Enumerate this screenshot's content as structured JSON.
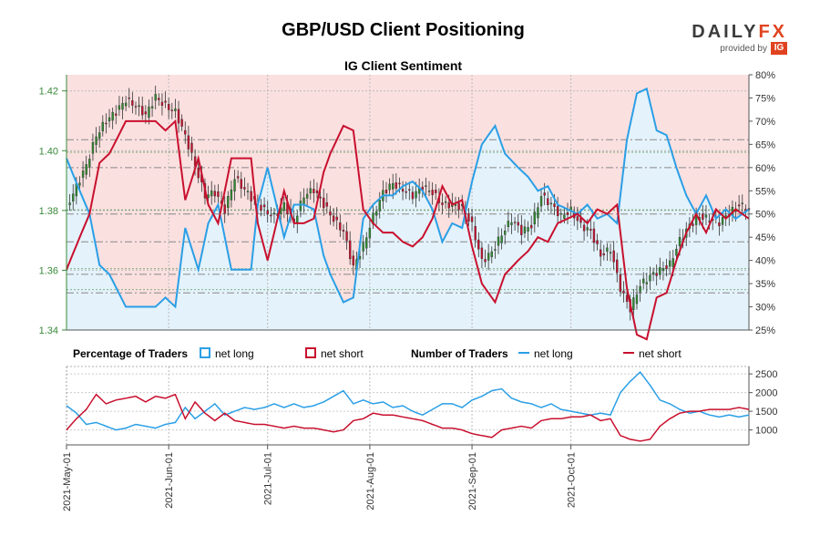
{
  "header": {
    "title": "GBP/USD Client Positioning",
    "subtitle": "IG Client Sentiment"
  },
  "logo": {
    "word_main": "DAILY",
    "word_accent": "FX",
    "provided_by": "provided by",
    "ig": "IG"
  },
  "legend": {
    "pct_title": "Percentage of Traders",
    "num_title": "Number of Traders",
    "net_long": "net long",
    "net_short": "net short"
  },
  "colors": {
    "long": "#2a9fe6",
    "short": "#c8102e",
    "up_candle": "#2e8b2e",
    "down_candle": "#c8102e",
    "price_axis": "#3a8a3a",
    "short_fill": "#fbe0e0",
    "long_fill": "#e4f2fb"
  },
  "chart_data": [
    {
      "type": "candlestick+line",
      "name": "price-and-percentage",
      "title": "IG Client Sentiment",
      "y_left_ticks": [
        "1.42",
        "1.40",
        "1.38",
        "1.36",
        "1.34"
      ],
      "y_left_values": [
        1.42,
        1.4,
        1.38,
        1.36,
        1.34
      ],
      "ylim_left": [
        1.34,
        1.4254
      ],
      "y_right_ticks": [
        "80%",
        "75%",
        "70%",
        "65%",
        "60%",
        "55%",
        "50%",
        "45%",
        "40%",
        "35%",
        "30%",
        "25%"
      ],
      "y_right_values": [
        80,
        75,
        70,
        65,
        60,
        55,
        50,
        45,
        40,
        35,
        30,
        25
      ],
      "ylim_right": [
        25,
        80
      ],
      "reference_lines_price": [
        1.3995,
        1.3802,
        1.3605,
        1.3535
      ],
      "reference_lines_pct": [
        66,
        60,
        50,
        44,
        37,
        33
      ],
      "price_keyframes": [
        [
          0,
          1.381
        ],
        [
          3,
          1.388
        ],
        [
          6,
          1.395
        ],
        [
          9,
          1.405
        ],
        [
          12,
          1.41
        ],
        [
          15,
          1.413
        ],
        [
          18,
          1.417
        ],
        [
          21,
          1.415
        ],
        [
          24,
          1.412
        ],
        [
          27,
          1.418
        ],
        [
          30,
          1.415
        ],
        [
          33,
          1.413
        ],
        [
          36,
          1.405
        ],
        [
          39,
          1.395
        ],
        [
          42,
          1.385
        ],
        [
          45,
          1.386
        ],
        [
          48,
          1.38
        ],
        [
          51,
          1.391
        ],
        [
          54,
          1.387
        ],
        [
          57,
          1.383
        ],
        [
          60,
          1.38
        ],
        [
          63,
          1.378
        ],
        [
          66,
          1.382
        ],
        [
          69,
          1.376
        ],
        [
          72,
          1.385
        ],
        [
          75,
          1.387
        ],
        [
          78,
          1.382
        ],
        [
          81,
          1.377
        ],
        [
          84,
          1.373
        ],
        [
          87,
          1.361
        ],
        [
          90,
          1.368
        ],
        [
          93,
          1.378
        ],
        [
          96,
          1.386
        ],
        [
          99,
          1.389
        ],
        [
          102,
          1.387
        ],
        [
          105,
          1.385
        ],
        [
          108,
          1.388
        ],
        [
          111,
          1.386
        ],
        [
          114,
          1.382
        ],
        [
          117,
          1.382
        ],
        [
          120,
          1.381
        ],
        [
          123,
          1.375
        ],
        [
          126,
          1.363
        ],
        [
          129,
          1.366
        ],
        [
          132,
          1.372
        ],
        [
          135,
          1.377
        ],
        [
          138,
          1.373
        ],
        [
          141,
          1.375
        ],
        [
          144,
          1.385
        ],
        [
          147,
          1.382
        ],
        [
          150,
          1.378
        ],
        [
          153,
          1.38
        ],
        [
          156,
          1.375
        ],
        [
          159,
          1.373
        ],
        [
          162,
          1.365
        ],
        [
          165,
          1.367
        ],
        [
          168,
          1.354
        ],
        [
          171,
          1.347
        ],
        [
          174,
          1.355
        ],
        [
          177,
          1.358
        ],
        [
          180,
          1.36
        ],
        [
          183,
          1.362
        ],
        [
          186,
          1.37
        ],
        [
          189,
          1.375
        ],
        [
          192,
          1.378
        ],
        [
          195,
          1.377
        ],
        [
          198,
          1.376
        ],
        [
          201,
          1.379
        ],
        [
          204,
          1.382
        ],
        [
          207,
          1.38
        ]
      ],
      "long_pct_keyframes": [
        [
          0,
          62
        ],
        [
          4,
          55
        ],
        [
          7,
          50
        ],
        [
          10,
          39
        ],
        [
          13,
          37
        ],
        [
          18,
          30
        ],
        [
          21,
          30
        ],
        [
          24,
          30
        ],
        [
          27,
          30
        ],
        [
          30,
          32
        ],
        [
          33,
          30
        ],
        [
          36,
          47
        ],
        [
          40,
          38
        ],
        [
          43,
          48
        ],
        [
          46,
          52
        ],
        [
          50,
          38
        ],
        [
          53,
          38
        ],
        [
          56,
          38
        ],
        [
          58,
          52
        ],
        [
          61,
          60
        ],
        [
          66,
          45
        ],
        [
          69,
          52
        ],
        [
          72,
          52
        ],
        [
          75,
          51
        ],
        [
          78,
          41
        ],
        [
          80,
          37
        ],
        [
          84,
          31
        ],
        [
          87,
          32
        ],
        [
          90,
          49
        ],
        [
          93,
          52
        ],
        [
          96,
          54
        ],
        [
          99,
          54
        ],
        [
          102,
          56
        ],
        [
          105,
          57
        ],
        [
          108,
          55
        ],
        [
          111,
          51
        ],
        [
          114,
          44
        ],
        [
          117,
          48
        ],
        [
          120,
          47
        ],
        [
          123,
          57
        ],
        [
          126,
          65
        ],
        [
          130,
          69
        ],
        [
          133,
          63
        ],
        [
          137,
          60
        ],
        [
          140,
          58
        ],
        [
          143,
          55
        ],
        [
          146,
          56
        ],
        [
          149,
          52
        ],
        [
          152,
          51
        ],
        [
          155,
          50
        ],
        [
          158,
          52
        ],
        [
          161,
          49
        ],
        [
          164,
          50
        ],
        [
          167,
          48
        ],
        [
          170,
          66
        ],
        [
          173,
          76
        ],
        [
          176,
          77
        ],
        [
          179,
          68
        ],
        [
          182,
          67
        ],
        [
          185,
          60
        ],
        [
          188,
          54
        ],
        [
          191,
          50
        ],
        [
          194,
          54
        ],
        [
          197,
          49
        ],
        [
          200,
          51
        ],
        [
          203,
          49
        ],
        [
          207,
          51
        ]
      ],
      "price_range_left": [
        1.34,
        1.4254
      ],
      "pct_range": [
        25,
        80
      ]
    },
    {
      "type": "line",
      "name": "number-of-traders",
      "y_ticks": [
        "2500",
        "2000",
        "1500",
        "1000"
      ],
      "y_values": [
        2500,
        2000,
        1500,
        1000
      ],
      "ylim": [
        600,
        2650
      ],
      "net_long_keyframes": [
        [
          0,
          1650
        ],
        [
          3,
          1450
        ],
        [
          6,
          1150
        ],
        [
          9,
          1200
        ],
        [
          12,
          1100
        ],
        [
          15,
          1000
        ],
        [
          18,
          1050
        ],
        [
          21,
          1150
        ],
        [
          24,
          1100
        ],
        [
          27,
          1050
        ],
        [
          30,
          1150
        ],
        [
          33,
          1200
        ],
        [
          36,
          1600
        ],
        [
          39,
          1300
        ],
        [
          42,
          1500
        ],
        [
          45,
          1700
        ],
        [
          48,
          1400
        ],
        [
          51,
          1500
        ],
        [
          54,
          1600
        ],
        [
          57,
          1550
        ],
        [
          60,
          1600
        ],
        [
          63,
          1700
        ],
        [
          66,
          1600
        ],
        [
          69,
          1700
        ],
        [
          72,
          1600
        ],
        [
          75,
          1650
        ],
        [
          78,
          1750
        ],
        [
          81,
          1900
        ],
        [
          84,
          2050
        ],
        [
          87,
          1700
        ],
        [
          90,
          1800
        ],
        [
          93,
          1700
        ],
        [
          96,
          1750
        ],
        [
          99,
          1600
        ],
        [
          102,
          1650
        ],
        [
          105,
          1500
        ],
        [
          108,
          1400
        ],
        [
          111,
          1550
        ],
        [
          114,
          1700
        ],
        [
          117,
          1700
        ],
        [
          120,
          1600
        ],
        [
          123,
          1800
        ],
        [
          126,
          1900
        ],
        [
          129,
          2050
        ],
        [
          132,
          2100
        ],
        [
          135,
          1850
        ],
        [
          138,
          1750
        ],
        [
          141,
          1700
        ],
        [
          144,
          1600
        ],
        [
          147,
          1700
        ],
        [
          150,
          1550
        ],
        [
          153,
          1500
        ],
        [
          156,
          1450
        ],
        [
          159,
          1400
        ],
        [
          162,
          1450
        ],
        [
          165,
          1400
        ],
        [
          168,
          2000
        ],
        [
          171,
          2300
        ],
        [
          174,
          2550
        ],
        [
          177,
          2200
        ],
        [
          180,
          1800
        ],
        [
          183,
          1700
        ],
        [
          186,
          1550
        ],
        [
          189,
          1450
        ],
        [
          192,
          1500
        ],
        [
          195,
          1400
        ],
        [
          198,
          1350
        ],
        [
          201,
          1400
        ],
        [
          204,
          1350
        ],
        [
          207,
          1400
        ]
      ],
      "net_short_keyframes": [
        [
          0,
          1000
        ],
        [
          3,
          1300
        ],
        [
          6,
          1550
        ],
        [
          9,
          1950
        ],
        [
          12,
          1700
        ],
        [
          15,
          1800
        ],
        [
          18,
          1850
        ],
        [
          21,
          1900
        ],
        [
          24,
          1750
        ],
        [
          27,
          1900
        ],
        [
          30,
          1850
        ],
        [
          33,
          1950
        ],
        [
          36,
          1300
        ],
        [
          39,
          1750
        ],
        [
          42,
          1450
        ],
        [
          45,
          1250
        ],
        [
          48,
          1450
        ],
        [
          51,
          1250
        ],
        [
          54,
          1200
        ],
        [
          57,
          1150
        ],
        [
          60,
          1150
        ],
        [
          63,
          1100
        ],
        [
          66,
          1050
        ],
        [
          69,
          1100
        ],
        [
          72,
          1050
        ],
        [
          75,
          1050
        ],
        [
          78,
          1000
        ],
        [
          81,
          950
        ],
        [
          84,
          1000
        ],
        [
          87,
          1250
        ],
        [
          90,
          1300
        ],
        [
          93,
          1450
        ],
        [
          96,
          1400
        ],
        [
          99,
          1400
        ],
        [
          102,
          1350
        ],
        [
          105,
          1300
        ],
        [
          108,
          1250
        ],
        [
          111,
          1150
        ],
        [
          114,
          1050
        ],
        [
          117,
          1050
        ],
        [
          120,
          1000
        ],
        [
          123,
          900
        ],
        [
          126,
          850
        ],
        [
          129,
          800
        ],
        [
          132,
          1000
        ],
        [
          135,
          1050
        ],
        [
          138,
          1100
        ],
        [
          141,
          1050
        ],
        [
          144,
          1250
        ],
        [
          147,
          1300
        ],
        [
          150,
          1300
        ],
        [
          153,
          1350
        ],
        [
          156,
          1350
        ],
        [
          159,
          1400
        ],
        [
          162,
          1250
        ],
        [
          165,
          1300
        ],
        [
          168,
          850
        ],
        [
          171,
          750
        ],
        [
          174,
          700
        ],
        [
          177,
          750
        ],
        [
          180,
          1100
        ],
        [
          183,
          1300
        ],
        [
          186,
          1450
        ],
        [
          189,
          1500
        ],
        [
          192,
          1500
        ],
        [
          195,
          1550
        ],
        [
          198,
          1550
        ],
        [
          201,
          1550
        ],
        [
          204,
          1600
        ],
        [
          207,
          1550
        ]
      ]
    }
  ],
  "x_axis": {
    "labels": [
      "2021-May-01",
      "2021-Jun-01",
      "2021-Jul-01",
      "2021-Aug-01",
      "2021-Sep-01",
      "2021-Oct-01"
    ],
    "label_positions_index": [
      0,
      31,
      61,
      92,
      123,
      153
    ],
    "total_points": 208
  }
}
